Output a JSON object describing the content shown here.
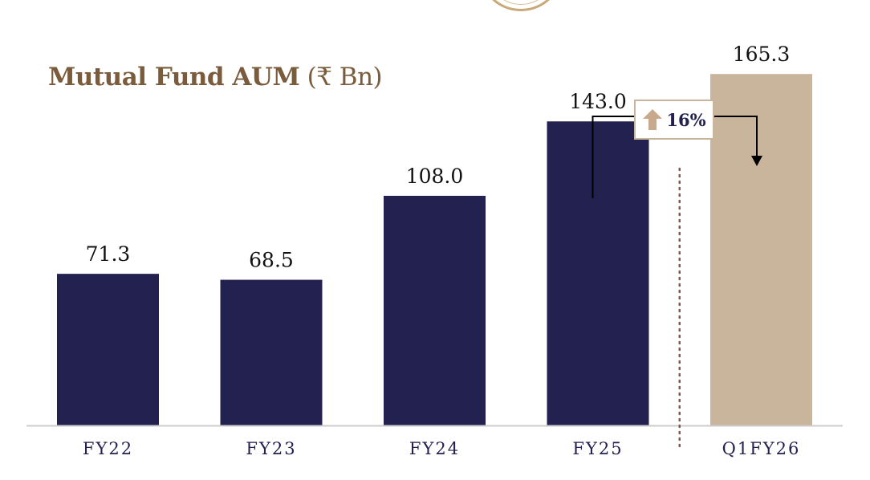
{
  "title": {
    "main": "Mutual Fund AUM",
    "unit": "(₹ Bn)"
  },
  "chart_data": {
    "type": "bar",
    "title": "Mutual Fund AUM (₹ Bn)",
    "categories": [
      "FY22",
      "FY23",
      "FY24",
      "FY25",
      "Q1FY26"
    ],
    "values": [
      71.3,
      68.5,
      108.0,
      143.0,
      165.3
    ],
    "value_labels": [
      "71.3",
      "68.5",
      "108.0",
      "143.0",
      "165.3"
    ],
    "highlight_index": 4,
    "ylim": [
      0,
      185
    ],
    "grid": false,
    "legend": "none",
    "colors": {
      "primary": "#23214f",
      "highlight": "#c9b49c",
      "axis": "#cccccc",
      "divider": "#7a5c4f",
      "arrow": "#000000"
    },
    "annotation": {
      "text": "16%",
      "from": "FY25",
      "to": "Q1FY26",
      "icon": "up-arrow-icon",
      "icon_color": "#c9a98c"
    }
  }
}
